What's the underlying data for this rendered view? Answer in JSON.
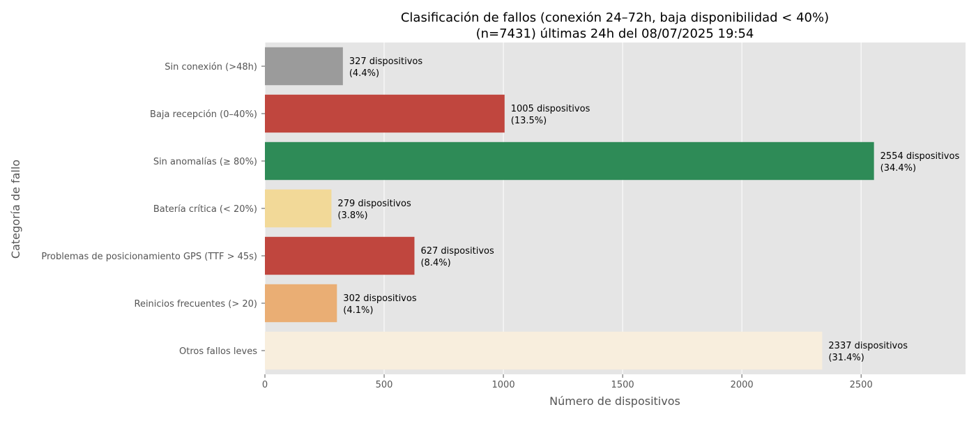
{
  "chart_data": {
    "type": "bar",
    "orientation": "horizontal",
    "title": "Clasificación de fallos (conexión 24–72h, baja disponibilidad < 40%)",
    "subtitle": "(n=7431) últimas 24h del 08/07/2025 19:54",
    "xlabel": "Número de dispositivos",
    "ylabel": "Categoría de fallo",
    "xlim": [
      0,
      2938
    ],
    "xticks": [
      0,
      500,
      1000,
      1500,
      2000,
      2500
    ],
    "grid": true,
    "legend": "none",
    "categories": [
      "Sin conexión (>48h)",
      "Baja recepción (0–40%)",
      "Sin anomalías (≥ 80%)",
      "Batería crítica (< 20%)",
      "Problemas de posicionamiento GPS (TTF > 45s)",
      "Reinicios frecuentes (> 20)",
      "Otros fallos leves"
    ],
    "values": [
      327,
      1005,
      2554,
      279,
      627,
      302,
      2337
    ],
    "colors": [
      "#9b9b9b",
      "#c0463e",
      "#2e8b57",
      "#f2d998",
      "#c0463e",
      "#eaae74",
      "#f8eedd"
    ],
    "data_labels": [
      [
        "327 dispositivos",
        "(4.4%)"
      ],
      [
        "1005 dispositivos",
        "(13.5%)"
      ],
      [
        "2554 dispositivos",
        "(34.4%)"
      ],
      [
        "279 dispositivos",
        "(3.8%)"
      ],
      [
        "627 dispositivos",
        "(8.4%)"
      ],
      [
        "302 dispositivos",
        "(4.1%)"
      ],
      [
        "2337 dispositivos",
        "(31.4%)"
      ]
    ]
  },
  "style": {
    "plot_background": "#e5e5e5",
    "grid_color": "#ffffff",
    "tick_color": "#555555"
  }
}
